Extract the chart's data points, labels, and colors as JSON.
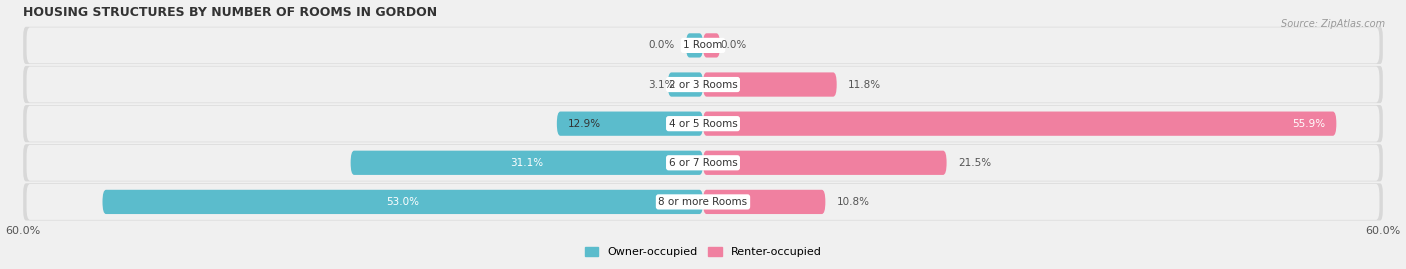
{
  "title": "HOUSING STRUCTURES BY NUMBER OF ROOMS IN GORDON",
  "source": "Source: ZipAtlas.com",
  "categories": [
    "1 Room",
    "2 or 3 Rooms",
    "4 or 5 Rooms",
    "6 or 7 Rooms",
    "8 or more Rooms"
  ],
  "owner_values": [
    0.0,
    3.1,
    12.9,
    31.1,
    53.0
  ],
  "renter_values": [
    0.0,
    11.8,
    55.9,
    21.5,
    10.8
  ],
  "owner_color": "#5bbccc",
  "renter_color": "#f080a0",
  "axis_limit": 60.0,
  "bar_height": 0.62,
  "background_color": "#f0f0f0",
  "row_bg_color": "#e0e0e0",
  "row_inner_color": "#f8f8f8",
  "title_fontsize": 9,
  "label_fontsize": 7.5,
  "category_fontsize": 7.5,
  "source_fontsize": 7
}
